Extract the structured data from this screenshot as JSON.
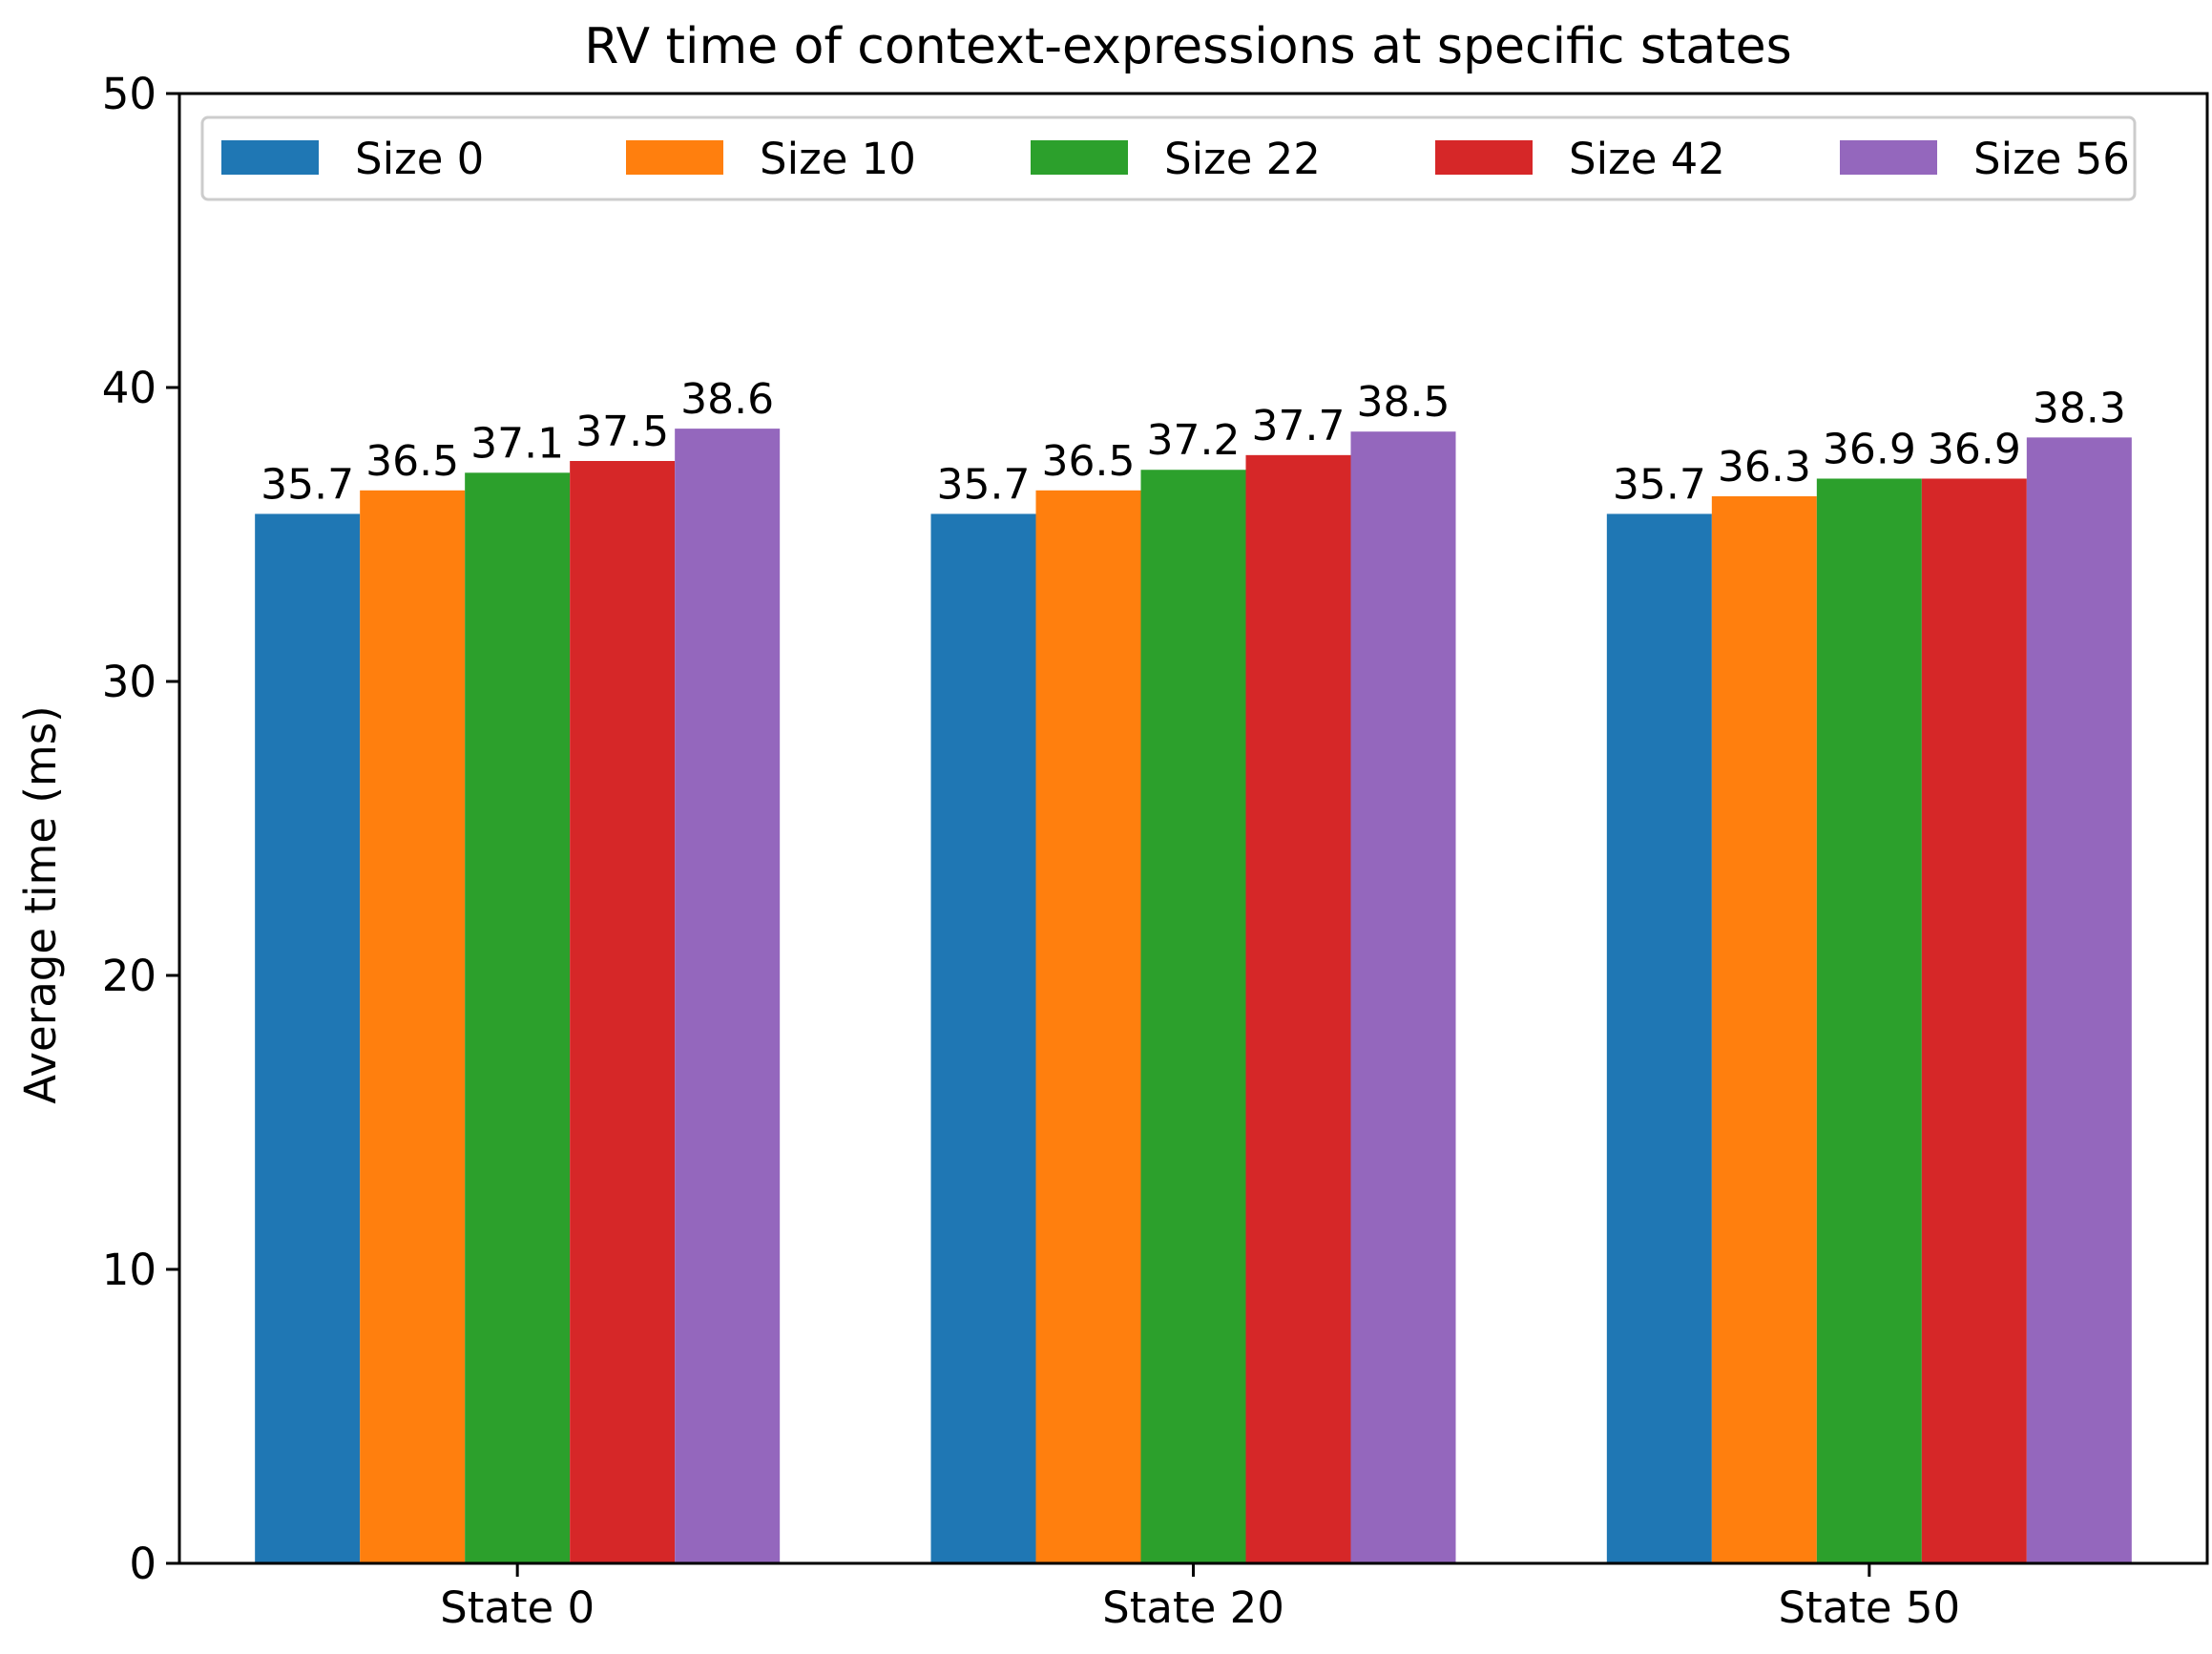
{
  "chart_data": {
    "type": "bar",
    "title": "RV time of context-expressions at specific states",
    "xlabel": "",
    "ylabel": "Average time (ms)",
    "ylim": [
      0,
      50
    ],
    "yticks": [
      0,
      10,
      20,
      30,
      40,
      50
    ],
    "categories": [
      "State 0",
      "State 20",
      "State 50"
    ],
    "legend_position": "top",
    "series": [
      {
        "name": "Size 0",
        "color": "#1f77b4",
        "values": [
          35.7,
          35.7,
          35.7
        ],
        "labels": [
          "35.7",
          "35.7",
          "35.7"
        ]
      },
      {
        "name": "Size 10",
        "color": "#ff7f0e",
        "values": [
          36.5,
          36.5,
          36.3
        ],
        "labels": [
          "36.5",
          "36.5",
          "36.3"
        ]
      },
      {
        "name": "Size 22",
        "color": "#2ca02c",
        "values": [
          37.1,
          37.2,
          36.9
        ],
        "labels": [
          "37.1",
          "37.2",
          "36.9"
        ]
      },
      {
        "name": "Size 42",
        "color": "#d62728",
        "values": [
          37.5,
          37.7,
          36.9
        ],
        "labels": [
          "37.5",
          "37.7",
          "36.9"
        ]
      },
      {
        "name": "Size 56",
        "color": "#9467bd",
        "values": [
          38.6,
          38.5,
          38.3
        ],
        "labels": [
          "38.6",
          "38.5",
          "38.3"
        ]
      }
    ]
  }
}
